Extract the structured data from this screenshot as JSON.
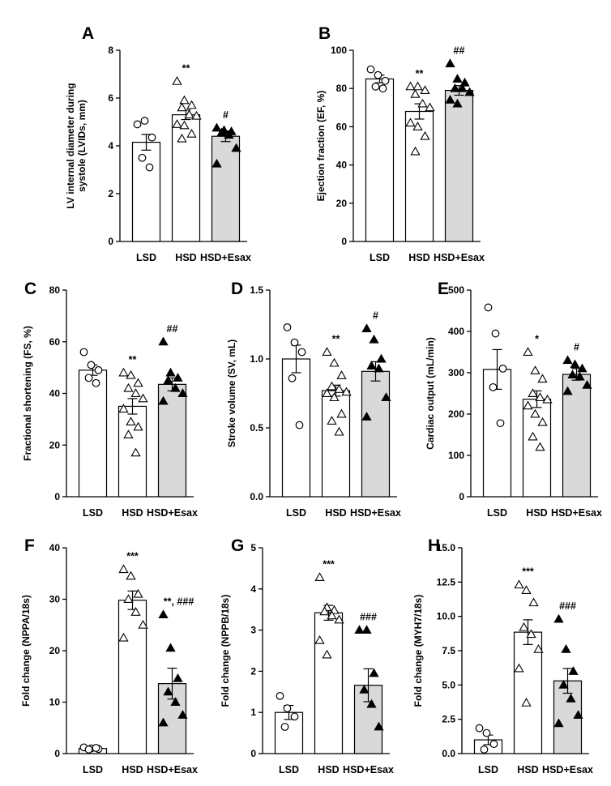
{
  "chart_data": [
    {
      "panel": "A",
      "type": "bar",
      "categories": [
        "LSD",
        "HSD",
        "HSD+Esax"
      ],
      "values": [
        4.15,
        5.3,
        4.4
      ],
      "sem": [
        0.33,
        0.2,
        0.22
      ],
      "points": [
        [
          4.9,
          5.05,
          4.35,
          3.5,
          3.1
        ],
        [
          6.7,
          5.9,
          5.7,
          5.6,
          5.3,
          5.25,
          4.9,
          4.85,
          4.5,
          4.3
        ],
        [
          4.75,
          4.65,
          4.6,
          4.55,
          4.45,
          3.9,
          3.25
        ]
      ],
      "significance": [
        "",
        "**",
        "#"
      ],
      "ylabel_lines": [
        "LV internal diameter during",
        "systole (LVIDs, mm)"
      ],
      "ylim": [
        0,
        8
      ],
      "yticks": [
        "0",
        "2",
        "4",
        "6",
        "8"
      ],
      "xlabel": ""
    },
    {
      "panel": "B",
      "type": "bar",
      "categories": [
        "LSD",
        "HSD",
        "HSD+Esax"
      ],
      "values": [
        85,
        68,
        79
      ],
      "sem": [
        2,
        4,
        2.5
      ],
      "points": [
        [
          90,
          87,
          84,
          81,
          80
        ],
        [
          81,
          81,
          79,
          77,
          72,
          70,
          62,
          60,
          55,
          47
        ],
        [
          93,
          85,
          83,
          80,
          80,
          78,
          74,
          72
        ]
      ],
      "significance": [
        "",
        "**",
        "##"
      ],
      "ylabel_lines": [
        "Ejection fraction (EF, %)"
      ],
      "ylim": [
        0,
        100
      ],
      "yticks": [
        "0",
        "20",
        "40",
        "60",
        "80",
        "100"
      ],
      "xlabel": ""
    },
    {
      "panel": "C",
      "type": "bar",
      "categories": [
        "LSD",
        "HSD",
        "HSD+Esax"
      ],
      "values": [
        49,
        35,
        43.5
      ],
      "sem": [
        2,
        3,
        2.5
      ],
      "points": [
        [
          56,
          51,
          49,
          46,
          44
        ],
        [
          48,
          47,
          44,
          42,
          40,
          38,
          34,
          29,
          27,
          24,
          17
        ],
        [
          60,
          48,
          46,
          45,
          42,
          40,
          37
        ]
      ],
      "significance": [
        "",
        "**",
        "##"
      ],
      "ylabel_lines": [
        "Fractional shortening (FS, %)"
      ],
      "ylim": [
        0,
        80
      ],
      "yticks": [
        "0",
        "20",
        "40",
        "60",
        "80"
      ],
      "xlabel": ""
    },
    {
      "panel": "D",
      "type": "bar",
      "categories": [
        "LSD",
        "HSD",
        "HSD+Esax"
      ],
      "values": [
        1.0,
        0.77,
        0.91
      ],
      "sem": [
        0.1,
        0.04,
        0.07
      ],
      "points": [
        [
          1.23,
          1.12,
          1.05,
          0.86,
          0.52
        ],
        [
          1.05,
          0.97,
          0.88,
          0.8,
          0.78,
          0.76,
          0.75,
          0.72,
          0.6,
          0.55,
          0.47
        ],
        [
          1.22,
          1.14,
          1.0,
          0.95,
          0.93,
          0.72,
          0.58
        ]
      ],
      "significance": [
        "",
        "**",
        "#"
      ],
      "ylabel_lines": [
        "Stroke volume (SV, mL)"
      ],
      "ylim": [
        0,
        1.5
      ],
      "yticks": [
        "0.0",
        "0.5",
        "1.0",
        "1.5"
      ],
      "xlabel": ""
    },
    {
      "panel": "E",
      "type": "bar",
      "categories": [
        "LSD",
        "HSD",
        "HSD+Esax"
      ],
      "values": [
        308,
        236,
        296
      ],
      "sem": [
        48,
        20,
        14
      ],
      "points": [
        [
          458,
          395,
          310,
          265,
          178
        ],
        [
          350,
          305,
          285,
          250,
          240,
          235,
          220,
          200,
          180,
          145,
          120
        ],
        [
          330,
          320,
          310,
          295,
          290,
          270,
          255
        ]
      ],
      "significance": [
        "",
        "*",
        "#"
      ],
      "ylabel_lines": [
        "Cardiac output (mL/min)"
      ],
      "ylim": [
        0,
        500
      ],
      "yticks": [
        "0",
        "100",
        "200",
        "300",
        "400",
        "500"
      ],
      "xlabel": ""
    },
    {
      "panel": "F",
      "type": "bar",
      "categories": [
        "LSD",
        "HSD",
        "HSD+Esax"
      ],
      "values": [
        1,
        29.8,
        13.6
      ],
      "sem": [
        0.1,
        1.8,
        3
      ],
      "points": [
        [
          1.2,
          1.0,
          0.9,
          0.8,
          1.1
        ],
        [
          35.8,
          34.5,
          31,
          30,
          27.5,
          25,
          22.5
        ],
        [
          27,
          20.5,
          14.6,
          12,
          10,
          7.5,
          6
        ]
      ],
      "significance": [
        "",
        "***",
        "**, ###"
      ],
      "ylabel_lines": [
        "Fold change (NPPA/18s)"
      ],
      "ylim": [
        0,
        40
      ],
      "yticks": [
        "0",
        "10",
        "20",
        "30",
        "40"
      ],
      "xlabel": ""
    },
    {
      "panel": "G",
      "type": "bar",
      "categories": [
        "LSD",
        "HSD",
        "HSD+Esax"
      ],
      "values": [
        1,
        3.42,
        1.66
      ],
      "sem": [
        0.17,
        0.18,
        0.4
      ],
      "points": [
        [
          1.4,
          1.1,
          0.9,
          0.65
        ],
        [
          4.28,
          3.55,
          3.48,
          3.45,
          3.35,
          3.25,
          2.75,
          2.4
        ],
        [
          3.0,
          3.0,
          1.95,
          1.55,
          1.2,
          0.65
        ]
      ],
      "significance": [
        "",
        "***",
        "###"
      ],
      "ylabel_lines": [
        "Fold change (NPPB/18s)"
      ],
      "ylim": [
        0,
        5
      ],
      "yticks": [
        "0",
        "1",
        "2",
        "3",
        "4",
        "5"
      ],
      "xlabel": ""
    },
    {
      "panel": "H",
      "type": "bar",
      "categories": [
        "LSD",
        "HSD",
        "HSD+Esax"
      ],
      "values": [
        1,
        8.85,
        5.3
      ],
      "sem": [
        0.35,
        0.9,
        0.9
      ],
      "points": [
        [
          1.85,
          1.5,
          0.7,
          0.3
        ],
        [
          12.3,
          11.9,
          11.0,
          9.2,
          8.7,
          7.6,
          6.2,
          3.7
        ],
        [
          9.8,
          7.6,
          6.0,
          5.0,
          4.0,
          2.8,
          2.2
        ]
      ],
      "significance": [
        "",
        "***",
        "###"
      ],
      "ylabel_lines": [
        "Fold change (MYH7/18s)"
      ],
      "ylim": [
        0,
        15
      ],
      "yticks": [
        "0.0",
        "2.5",
        "5.0",
        "7.5",
        "10.0",
        "12.5",
        "15.0"
      ],
      "xlabel": ""
    }
  ],
  "colors": {
    "lsd_fill": "#ffffff",
    "hsd_fill": "#ffffff",
    "esax_fill": "#d9d9d9",
    "stroke": "#000000"
  },
  "marker_shapes": [
    "open-circle",
    "open-triangle",
    "filled-triangle"
  ]
}
